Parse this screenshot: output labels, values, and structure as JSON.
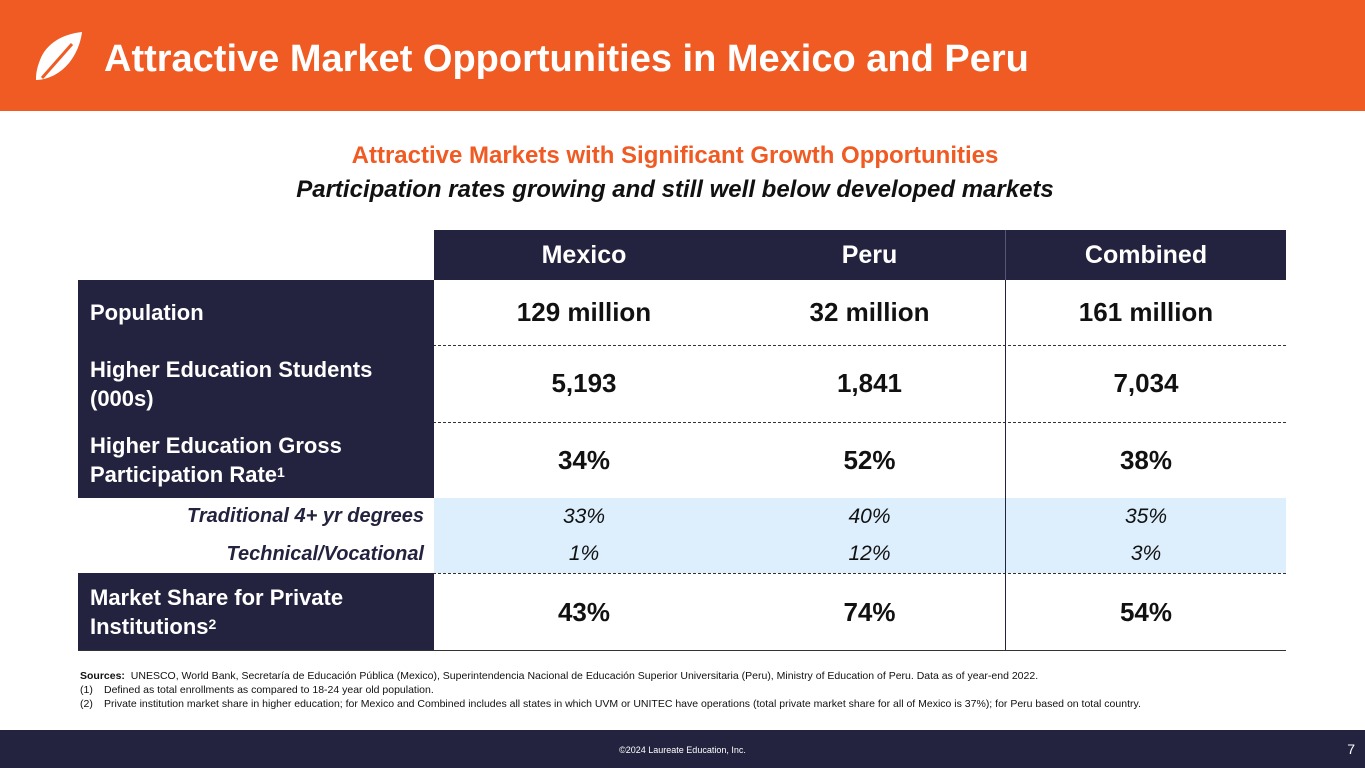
{
  "header": {
    "title": "Attractive Market Opportunities in Mexico and Peru",
    "brand_color": "#f05a23"
  },
  "subtitle": {
    "line1": "Attractive Markets with Significant Growth Opportunities",
    "line2": "Participation rates growing and still well below developed markets"
  },
  "table": {
    "columns": [
      "Mexico",
      "Peru",
      "Combined"
    ],
    "rows": [
      {
        "label": "Population",
        "values": [
          "129 million",
          "32 million",
          "161 million"
        ]
      },
      {
        "label": "Higher Education Students (000s)",
        "values": [
          "5,193",
          "1,841",
          "7,034"
        ]
      },
      {
        "label": "Higher Education Gross Participation Rate",
        "sup": "1",
        "values": [
          "34%",
          "52%",
          "38%"
        ]
      },
      {
        "label": "Traditional 4+ yr degrees",
        "values": [
          "33%",
          "40%",
          "35%"
        ]
      },
      {
        "label": "Technical/Vocational",
        "values": [
          "1%",
          "12%",
          "3%"
        ]
      },
      {
        "label": "Market Share for Private Institutions",
        "sup": "2",
        "values": [
          "43%",
          "74%",
          "54%"
        ]
      }
    ],
    "header_color": "#23233f",
    "highlight_color": "#ddeefc"
  },
  "sources": {
    "label": "Sources:",
    "text": "UNESCO, World Bank, Secretaría de Educación Pública (Mexico), Superintendencia Nacional de Educación Superior Universitaria (Peru), Ministry of Education of Peru. Data as of year-end 2022.",
    "note1_num": "(1)",
    "note1": "Defined as total enrollments as compared to 18-24 year old population.",
    "note2_num": "(2)",
    "note2": "Private institution market share in higher education; for Mexico and Combined includes all states in which UVM or UNITEC have operations (total private market share for all of Mexico is 37%); for Peru based on total country."
  },
  "footer": {
    "copyright": "©2024 Laureate Education, Inc.",
    "page_number": "7"
  }
}
